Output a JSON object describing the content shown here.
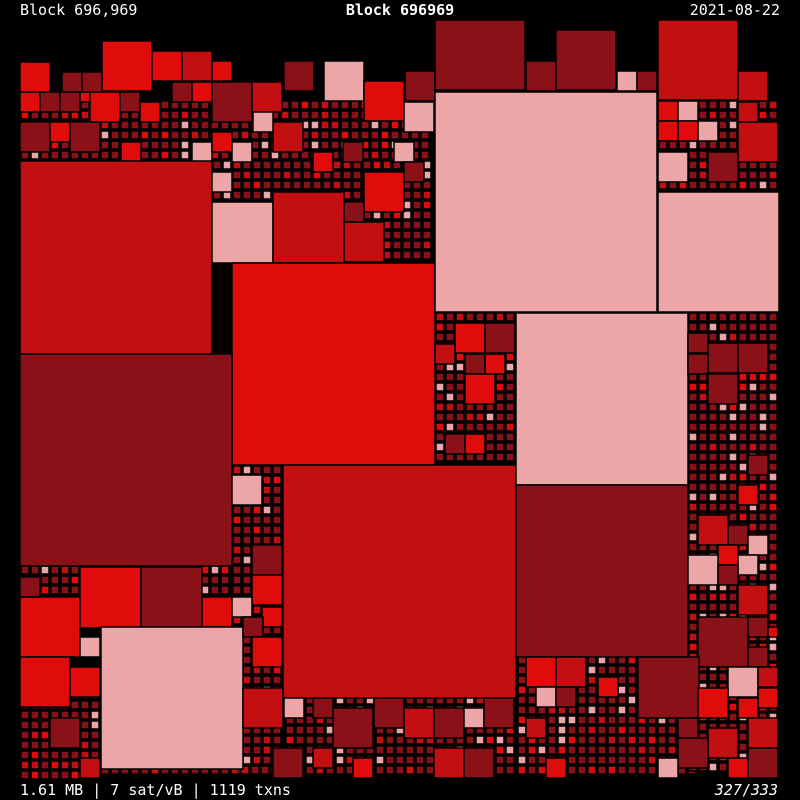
{
  "header": {
    "block_label": "Block 696,969",
    "title": "Block 696969",
    "date": "2021-08-22"
  },
  "footer": {
    "stats": "1.61 MB | 7 sat/vB | 1119 txns",
    "page_current": "327",
    "page_separator": "/",
    "page_total": "333"
  },
  "colors": {
    "background": "#000000",
    "red_bright": "#e00c0c",
    "red_medium": "#c40f12",
    "red_dark": "#8a1117",
    "pink": "#eda6a8",
    "outline": "#000000"
  }
}
